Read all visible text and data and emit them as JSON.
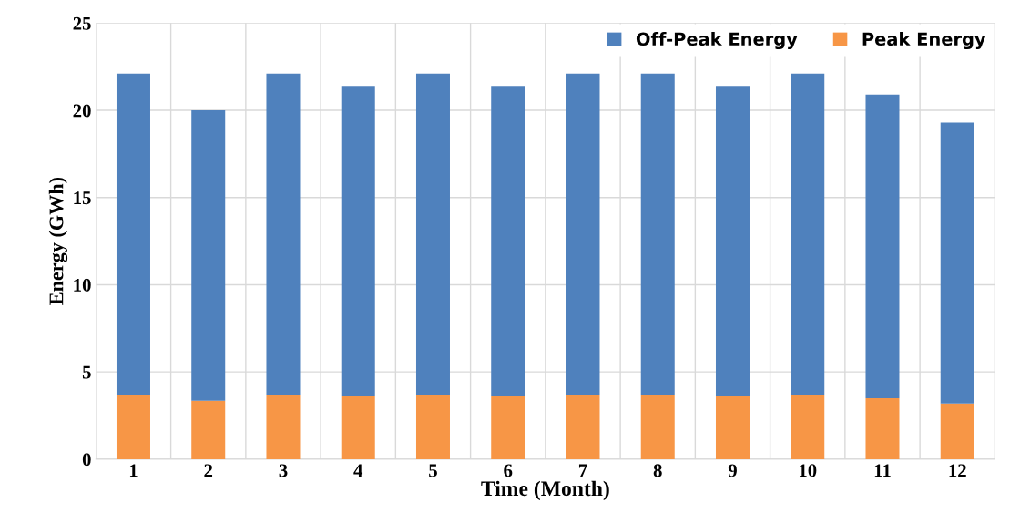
{
  "chart_data": {
    "type": "bar",
    "stacked": true,
    "xlabel": "Time (Month)",
    "ylabel": "Energy (GWh)",
    "categories": [
      "1",
      "2",
      "3",
      "4",
      "5",
      "6",
      "7",
      "8",
      "9",
      "10",
      "11",
      "12"
    ],
    "series": [
      {
        "name": "Peak Energy",
        "color": "#f79646",
        "values": [
          3.7,
          3.35,
          3.7,
          3.6,
          3.7,
          3.6,
          3.7,
          3.7,
          3.6,
          3.7,
          3.5,
          3.2
        ]
      },
      {
        "name": "Off-Peak Energy",
        "color": "#4f81bd",
        "values": [
          18.4,
          16.65,
          18.4,
          17.8,
          18.4,
          17.8,
          18.4,
          18.4,
          17.8,
          18.4,
          17.4,
          16.1
        ]
      }
    ],
    "ylim": [
      0,
      25
    ],
    "yticks": [
      0,
      5,
      10,
      15,
      20,
      25
    ],
    "grid": true,
    "legend": "top right"
  }
}
